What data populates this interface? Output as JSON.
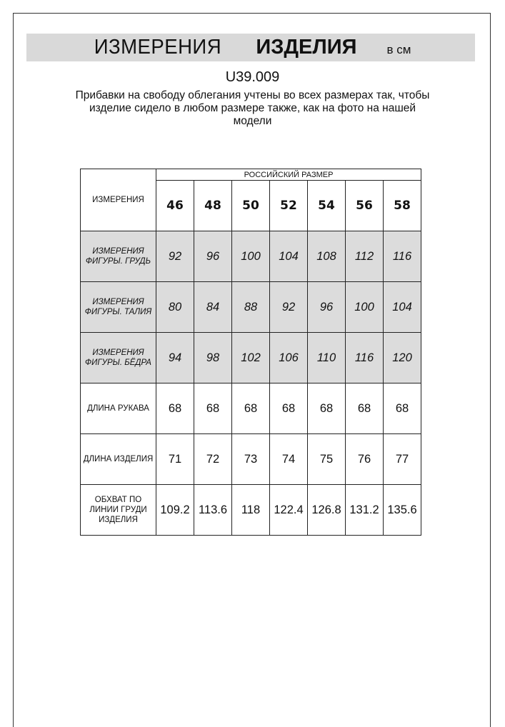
{
  "header": {
    "title_regular": "ИЗМЕРЕНИЯ",
    "title_bold": "ИЗДЕЛИЯ",
    "unit": "в см"
  },
  "article": "U39.009",
  "note": "Прибавки на свободу облегания учтены во всех размерах так, чтобы изделие сидело в любом размере также, как на фото на нашей модели",
  "table": {
    "corner_label": "ИЗМЕРЕНИЯ",
    "group_label": "РОССИЙСКИЙ РАЗМЕР",
    "sizes": [
      "46",
      "48",
      "50",
      "52",
      "54",
      "56",
      "58"
    ],
    "rows": [
      {
        "label": "ИЗМЕРЕНИЯ ФИГУРЫ. ГРУДЬ",
        "shaded": true,
        "values": [
          "92",
          "96",
          "100",
          "104",
          "108",
          "112",
          "116"
        ]
      },
      {
        "label": "ИЗМЕРЕНИЯ ФИГУРЫ. ТАЛИЯ",
        "shaded": true,
        "values": [
          "80",
          "84",
          "88",
          "92",
          "96",
          "100",
          "104"
        ]
      },
      {
        "label": "ИЗМЕРЕНИЯ ФИГУРЫ. БЁДРА",
        "shaded": true,
        "values": [
          "94",
          "98",
          "102",
          "106",
          "110",
          "116",
          "120"
        ]
      },
      {
        "label": "ДЛИНА РУКАВА",
        "shaded": false,
        "values": [
          "68",
          "68",
          "68",
          "68",
          "68",
          "68",
          "68"
        ]
      },
      {
        "label": "ДЛИНА ИЗДЕЛИЯ",
        "shaded": false,
        "values": [
          "71",
          "72",
          "73",
          "74",
          "75",
          "76",
          "77"
        ]
      },
      {
        "label": "ОБХВАТ ПО ЛИНИИ ГРУДИ ИЗДЕЛИЯ",
        "shaded": false,
        "values": [
          "109.2",
          "113.6",
          "118",
          "122.4",
          "126.8",
          "131.2",
          "135.6"
        ]
      }
    ]
  },
  "colors": {
    "band": "#d9d9d9",
    "shaded_row": "#dcdcdc"
  }
}
